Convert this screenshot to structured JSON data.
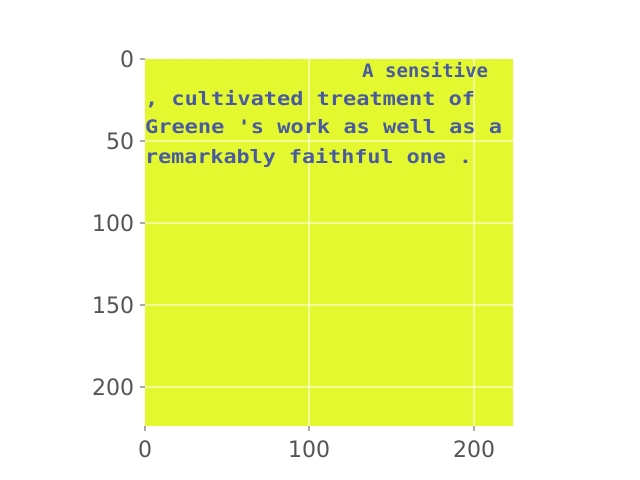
{
  "image": {
    "background_color": "#e3f82f",
    "text_color": "#4a5aa0",
    "text_lines": [
      "A sensitive",
      ", cultivated treatment of",
      "Greene 's work as well as a",
      "remarkably faithful one ."
    ]
  },
  "axes": {
    "x_ticks": [
      "0",
      "100",
      "200"
    ],
    "y_ticks": [
      "0",
      "50",
      "100",
      "150",
      "200"
    ],
    "x_range": [
      0,
      224
    ],
    "y_range": [
      0,
      224
    ],
    "grid": true,
    "grid_color": "#ffffff",
    "tick_color": "#555555"
  }
}
